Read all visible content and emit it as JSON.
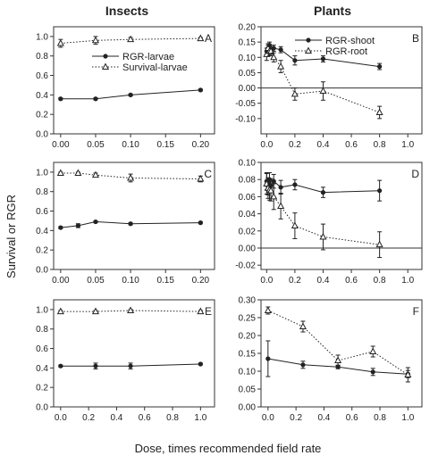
{
  "figure": {
    "col_title_left": "Insects",
    "col_title_right": "Plants",
    "ylabel": "Survival or RGR",
    "xlabel": "Dose, times recommended field rate"
  },
  "colors": {
    "axis": "#333333",
    "series": "#222222"
  },
  "chart_data": [
    {
      "panel": "A",
      "type": "line",
      "xlim": [
        -0.01,
        0.22
      ],
      "xticks": [
        0.0,
        0.05,
        0.1,
        0.15,
        0.2
      ],
      "ylim": [
        0.0,
        1.1
      ],
      "yticks": [
        0.0,
        0.2,
        0.4,
        0.6,
        0.8,
        1.0
      ],
      "zero_line": false,
      "legend": "top-right",
      "series": [
        {
          "name": "RGR-larvae",
          "style": "solid-filled-circle",
          "x": [
            0.0,
            0.05,
            0.1,
            0.2
          ],
          "y": [
            0.36,
            0.36,
            0.4,
            0.45
          ],
          "err": [
            0.01,
            0.01,
            0.01,
            0.01
          ]
        },
        {
          "name": "Survival-larvae",
          "style": "dotted-open-triangle",
          "x": [
            0.0,
            0.05,
            0.1,
            0.2
          ],
          "y": [
            0.93,
            0.96,
            0.97,
            0.98
          ],
          "err": [
            0.04,
            0.04,
            0.02,
            0.01
          ]
        }
      ]
    },
    {
      "panel": "B",
      "type": "line",
      "xlim": [
        -0.04,
        1.1
      ],
      "xticks": [
        0.0,
        0.2,
        0.4,
        0.6,
        0.8,
        1.0
      ],
      "ylim": [
        -0.15,
        0.2
      ],
      "yticks": [
        -0.1,
        -0.05,
        0.0,
        0.05,
        0.1,
        0.15,
        0.2
      ],
      "zero_line": true,
      "legend": "top-right",
      "series": [
        {
          "name": "RGR-shoot",
          "style": "solid-filled-circle",
          "x": [
            0.0,
            0.01,
            0.02,
            0.03,
            0.05,
            0.1,
            0.2,
            0.4,
            0.8
          ],
          "y": [
            0.12,
            0.13,
            0.14,
            0.12,
            0.13,
            0.125,
            0.09,
            0.095,
            0.07
          ],
          "err": [
            0.01,
            0.01,
            0.01,
            0.01,
            0.01,
            0.01,
            0.015,
            0.01,
            0.01
          ]
        },
        {
          "name": "RGR-root",
          "style": "dotted-open-triangle",
          "x": [
            0.0,
            0.01,
            0.02,
            0.03,
            0.05,
            0.1,
            0.2,
            0.4,
            0.8
          ],
          "y": [
            0.11,
            0.13,
            0.12,
            0.12,
            0.1,
            0.07,
            -0.02,
            -0.01,
            -0.08
          ],
          "err": [
            0.02,
            0.015,
            0.015,
            0.015,
            0.015,
            0.02,
            0.02,
            0.03,
            0.02
          ]
        }
      ]
    },
    {
      "panel": "C",
      "type": "line",
      "xlim": [
        -0.01,
        0.22
      ],
      "xticks": [
        0.0,
        0.05,
        0.1,
        0.15,
        0.2
      ],
      "ylim": [
        0.0,
        1.1
      ],
      "yticks": [
        0.0,
        0.2,
        0.4,
        0.6,
        0.8,
        1.0
      ],
      "zero_line": false,
      "legend": "none",
      "series": [
        {
          "name": "",
          "style": "solid-filled-circle",
          "x": [
            0.0,
            0.025,
            0.05,
            0.1,
            0.2
          ],
          "y": [
            0.43,
            0.45,
            0.49,
            0.47,
            0.48
          ],
          "err": [
            0.01,
            0.02,
            0.01,
            0.01,
            0.01
          ]
        },
        {
          "name": "",
          "style": "dotted-open-triangle",
          "x": [
            0.0,
            0.025,
            0.05,
            0.1,
            0.2
          ],
          "y": [
            0.99,
            0.99,
            0.97,
            0.94,
            0.93
          ],
          "err": [
            0.01,
            0.01,
            0.02,
            0.04,
            0.03
          ]
        }
      ]
    },
    {
      "panel": "D",
      "type": "line",
      "xlim": [
        -0.04,
        1.1
      ],
      "xticks": [
        0.0,
        0.2,
        0.4,
        0.6,
        0.8,
        1.0
      ],
      "ylim": [
        -0.025,
        0.1
      ],
      "yticks": [
        -0.02,
        0.0,
        0.02,
        0.04,
        0.06,
        0.08,
        0.1
      ],
      "zero_line": true,
      "legend": "none",
      "series": [
        {
          "name": "",
          "style": "solid-filled-circle",
          "x": [
            0.0,
            0.01,
            0.02,
            0.03,
            0.05,
            0.1,
            0.2,
            0.4,
            0.8
          ],
          "y": [
            0.078,
            0.072,
            0.08,
            0.073,
            0.078,
            0.071,
            0.074,
            0.065,
            0.067
          ],
          "err": [
            0.01,
            0.01,
            0.008,
            0.008,
            0.008,
            0.008,
            0.006,
            0.006,
            0.012
          ]
        },
        {
          "name": "",
          "style": "dotted-open-triangle",
          "x": [
            0.0,
            0.01,
            0.02,
            0.03,
            0.05,
            0.1,
            0.2,
            0.4,
            0.8
          ],
          "y": [
            0.075,
            0.07,
            0.068,
            0.067,
            0.06,
            0.049,
            0.026,
            0.013,
            0.004
          ],
          "err": [
            0.012,
            0.012,
            0.012,
            0.012,
            0.015,
            0.015,
            0.015,
            0.015,
            0.015
          ]
        }
      ]
    },
    {
      "panel": "E",
      "type": "line",
      "xlim": [
        -0.05,
        1.1
      ],
      "xticks": [
        0.0,
        0.2,
        0.4,
        0.6,
        0.8,
        1.0
      ],
      "ylim": [
        0.0,
        1.1
      ],
      "yticks": [
        0.0,
        0.2,
        0.4,
        0.6,
        0.8,
        1.0
      ],
      "zero_line": false,
      "legend": "none",
      "series": [
        {
          "name": "",
          "style": "solid-filled-circle",
          "x": [
            0.0,
            0.25,
            0.5,
            1.0
          ],
          "y": [
            0.42,
            0.42,
            0.42,
            0.44
          ],
          "err": [
            0.01,
            0.03,
            0.03,
            0.01
          ]
        },
        {
          "name": "",
          "style": "dotted-open-triangle",
          "x": [
            0.0,
            0.25,
            0.5,
            1.0
          ],
          "y": [
            0.98,
            0.98,
            0.99,
            0.98
          ],
          "err": [
            0.01,
            0.01,
            0.01,
            0.01
          ]
        }
      ]
    },
    {
      "panel": "F",
      "type": "line",
      "xlim": [
        -0.05,
        1.1
      ],
      "xticks": [
        0.0,
        0.2,
        0.4,
        0.6,
        0.8,
        1.0
      ],
      "ylim": [
        0.0,
        0.3
      ],
      "yticks": [
        0.0,
        0.05,
        0.1,
        0.15,
        0.2,
        0.25,
        0.3
      ],
      "zero_line": false,
      "legend": "none",
      "series": [
        {
          "name": "",
          "style": "solid-filled-circle",
          "x": [
            0.0,
            0.25,
            0.5,
            0.75,
            1.0
          ],
          "y": [
            0.135,
            0.118,
            0.112,
            0.098,
            0.092
          ],
          "err": [
            0.05,
            0.01,
            0.005,
            0.01,
            0.01
          ]
        },
        {
          "name": "",
          "style": "dotted-open-triangle",
          "x": [
            0.0,
            0.25,
            0.5,
            0.75,
            1.0
          ],
          "y": [
            0.27,
            0.225,
            0.13,
            0.155,
            0.09
          ],
          "err": [
            0.01,
            0.015,
            0.015,
            0.015,
            0.02
          ]
        }
      ]
    }
  ]
}
